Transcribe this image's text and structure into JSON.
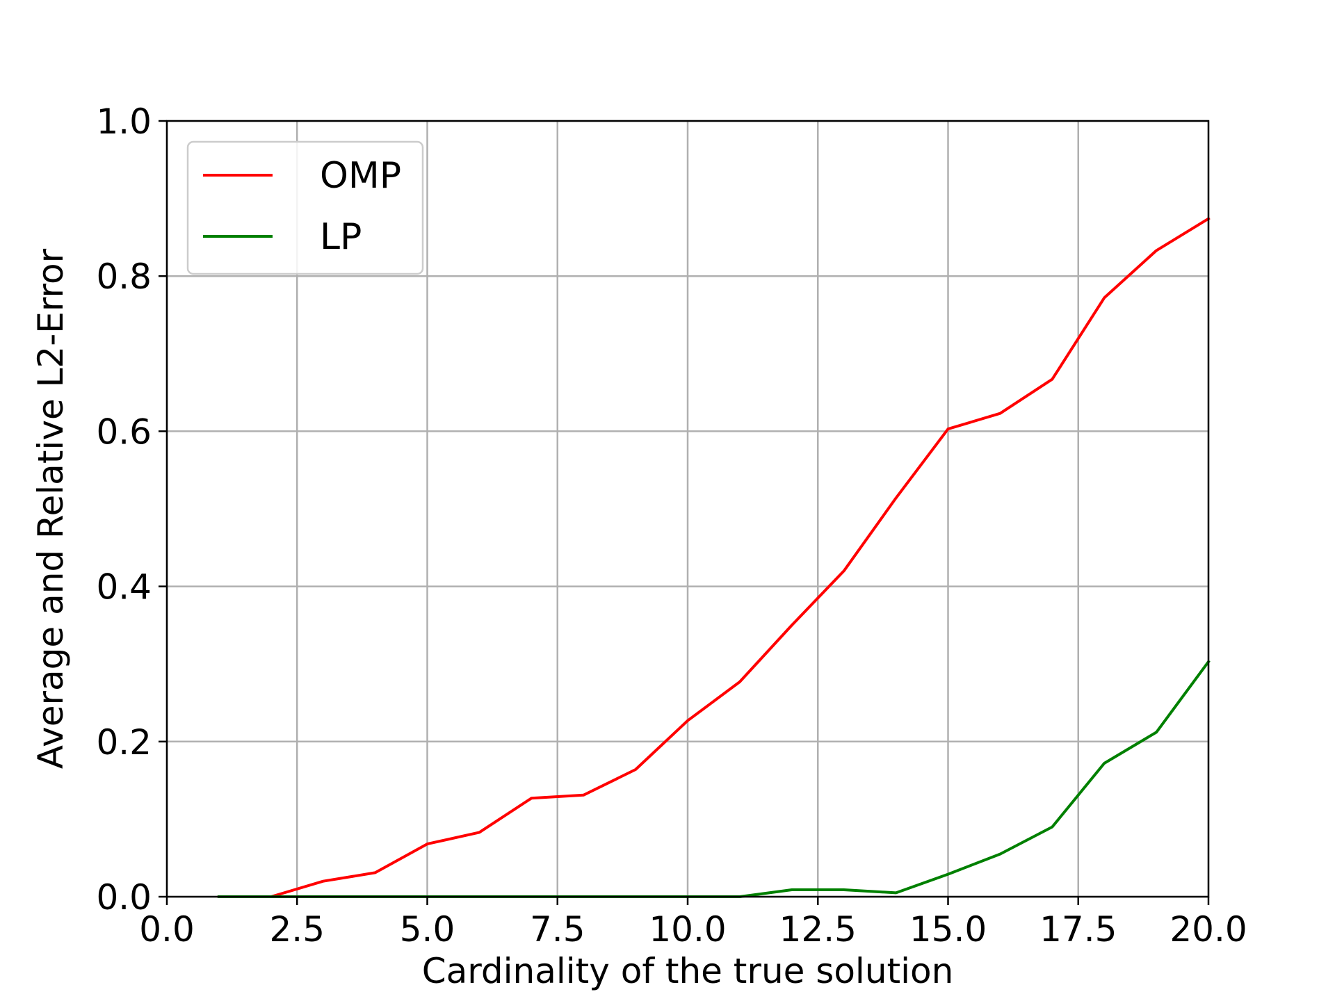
{
  "chart_data": {
    "type": "line",
    "title": "",
    "xlabel": "Cardinality of the true solution",
    "ylabel": "Average and Relative L2-Error",
    "xlim": [
      0.0,
      20.0
    ],
    "ylim": [
      0.0,
      1.0
    ],
    "xticks": [
      "0.0",
      "2.5",
      "5.0",
      "7.5",
      "10.0",
      "12.5",
      "15.0",
      "17.5",
      "20.0"
    ],
    "yticks": [
      "0.0",
      "0.2",
      "0.4",
      "0.6",
      "0.8",
      "1.0"
    ],
    "grid": true,
    "legend_position": "top-left",
    "x": [
      1,
      2,
      3,
      4,
      5,
      6,
      7,
      8,
      9,
      10,
      11,
      12,
      13,
      14,
      15,
      16,
      17,
      18,
      19,
      20
    ],
    "series": [
      {
        "name": "OMP",
        "color": "#ff0000",
        "values": [
          0.0,
          0.0,
          0.02,
          0.031,
          0.068,
          0.083,
          0.127,
          0.131,
          0.164,
          0.227,
          0.277,
          0.35,
          0.42,
          0.514,
          0.603,
          0.623,
          0.667,
          0.772,
          0.833,
          0.874
        ]
      },
      {
        "name": "LP",
        "color": "#008000",
        "values": [
          0.0,
          0.0,
          0.0,
          0.0,
          0.0,
          0.0,
          0.0,
          0.0,
          0.0,
          0.0,
          0.0,
          0.009,
          0.009,
          0.005,
          0.029,
          0.055,
          0.09,
          0.172,
          0.212,
          0.303
        ]
      }
    ]
  }
}
